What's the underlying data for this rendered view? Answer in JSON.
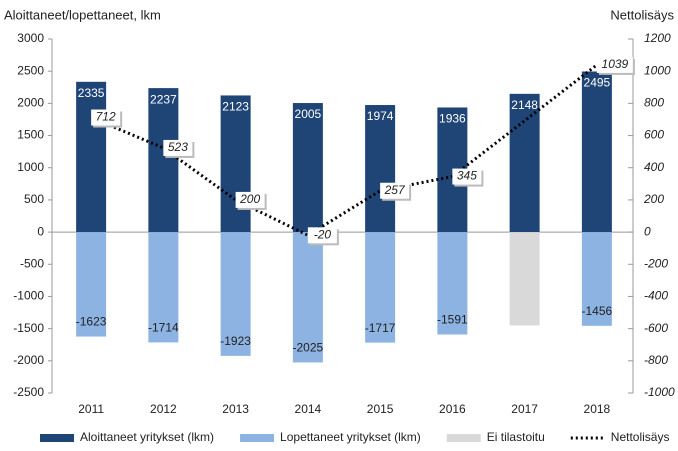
{
  "chart_data": {
    "type": "bar",
    "y_label": "Aloittaneet/lopettaneet, lkm",
    "y2_label": "Nettolisäys",
    "categories": [
      "2011",
      "2012",
      "2013",
      "2014",
      "2015",
      "2016",
      "2017",
      "2018"
    ],
    "series": [
      {
        "name": "Aloittaneet yritykset (lkm)",
        "color": "#1f4476",
        "values": [
          2335,
          2237,
          2123,
          2005,
          1974,
          1936,
          2148,
          2495
        ],
        "label_color": "#ffffff"
      },
      {
        "name": "Lopettaneet yritykset (lkm)",
        "color": "#8db3e2",
        "values": [
          -1623,
          -1714,
          -1923,
          -2025,
          -1717,
          -1591,
          null,
          -1456
        ],
        "label_color": "#222222"
      },
      {
        "name": "Ei tilastoitu",
        "color": "#d9d9d9",
        "values": [
          null,
          null,
          null,
          null,
          null,
          null,
          -1450,
          null
        ]
      },
      {
        "name": "Nettolisäys",
        "type": "line",
        "axis": "y2",
        "color": "#000000",
        "x": [
          "2011",
          "2012",
          "2013",
          "2014",
          "2015",
          "2016",
          "2018"
        ],
        "values": [
          712,
          523,
          200,
          -20,
          257,
          345,
          1039
        ]
      }
    ],
    "ylim": [
      -2500,
      3000
    ],
    "yticks": [
      -2500,
      -2000,
      -1500,
      -1000,
      -500,
      0,
      500,
      1000,
      1500,
      2000,
      2500,
      3000
    ],
    "y2lim": [
      -1000,
      1200
    ],
    "y2ticks": [
      -1000,
      -800,
      -600,
      -400,
      -200,
      0,
      200,
      400,
      600,
      800,
      1000,
      1200
    ],
    "legend": "bottom"
  }
}
